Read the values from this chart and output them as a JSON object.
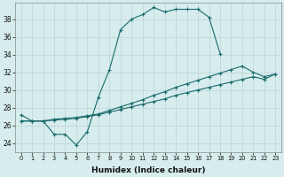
{
  "xlabel": "Humidex (Indice chaleur)",
  "bg_color": "#d6eced",
  "grid_color": "#c0d8da",
  "line_color": "#1a6b6b",
  "xlim": [
    -0.5,
    23.5
  ],
  "ylim": [
    23.0,
    39.8
  ],
  "xticks": [
    0,
    1,
    2,
    3,
    4,
    5,
    6,
    7,
    8,
    9,
    10,
    11,
    12,
    13,
    14,
    15,
    16,
    17,
    18,
    19,
    20,
    21,
    22,
    23
  ],
  "yticks": [
    24,
    26,
    28,
    30,
    32,
    34,
    36,
    38
  ],
  "line1_x": [
    0,
    1,
    2,
    3,
    4,
    5,
    6,
    7,
    8,
    9,
    10,
    11,
    12,
    13,
    14,
    15,
    16,
    17,
    18,
    19,
    20,
    21,
    22,
    23
  ],
  "line1_y": [
    27.2,
    26.5,
    26.5,
    25.0,
    25.0,
    23.8,
    25.3,
    29.2,
    32.3,
    36.8,
    38.0,
    38.5,
    39.3,
    38.8,
    39.1,
    39.1,
    39.1,
    38.2,
    34.1,
    null,
    null,
    null,
    null,
    null
  ],
  "line2_x": [
    0,
    1,
    2,
    3,
    4,
    5,
    6,
    7,
    8,
    9,
    10,
    11,
    12,
    13,
    14,
    15,
    16,
    17,
    18,
    19,
    20,
    21,
    22,
    23
  ],
  "line2_y": [
    26.5,
    26.5,
    26.5,
    26.7,
    26.8,
    26.9,
    27.1,
    27.3,
    27.7,
    28.1,
    28.5,
    28.9,
    29.4,
    29.8,
    30.3,
    30.7,
    31.1,
    31.5,
    31.9,
    32.3,
    32.7,
    32.0,
    31.5,
    31.8
  ],
  "line3_x": [
    0,
    1,
    2,
    3,
    4,
    5,
    6,
    7,
    8,
    9,
    10,
    11,
    12,
    13,
    14,
    15,
    16,
    17,
    18,
    19,
    20,
    21,
    22,
    23
  ],
  "line3_y": [
    26.5,
    26.5,
    26.5,
    26.6,
    26.7,
    26.8,
    27.0,
    27.2,
    27.5,
    27.8,
    28.1,
    28.4,
    28.7,
    29.0,
    29.4,
    29.7,
    30.0,
    30.3,
    30.6,
    30.9,
    31.2,
    31.5,
    31.2,
    31.8
  ]
}
